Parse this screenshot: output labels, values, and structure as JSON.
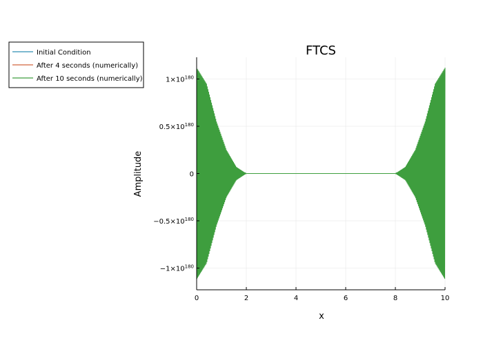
{
  "chart_data": {
    "type": "line",
    "title": "FTCS",
    "xlabel": "x",
    "ylabel": "Amplitude",
    "xlim": [
      0,
      10
    ],
    "ylim": [
      -1.23e+180,
      1.23e+180
    ],
    "x_ticks": [
      0,
      2,
      4,
      6,
      8,
      10
    ],
    "x_tick_labels": [
      "0",
      "2",
      "4",
      "6",
      "8",
      "10"
    ],
    "y_ticks": [
      {
        "value": 1e+180,
        "mantissa": "1×10",
        "exp": "180"
      },
      {
        "value": 5e+179,
        "mantissa": "0.5×10",
        "exp": "180"
      },
      {
        "value": 0,
        "mantissa": "0",
        "exp": ""
      },
      {
        "value": -5e+179,
        "mantissa": "−0.5×10",
        "exp": "180"
      },
      {
        "value": -1e+180,
        "mantissa": "−1×10",
        "exp": "180"
      }
    ],
    "grid": true,
    "legend_position": "outside-top-left",
    "series": [
      {
        "name": "Initial Condition",
        "color": "#2f8fb5",
        "pattern": "flat",
        "peak": 0
      },
      {
        "name": "After 4 seconds (numerically)",
        "color": "#d2643c",
        "pattern": "flat",
        "peak": 0
      },
      {
        "name": "After 10 seconds (numerically)",
        "color": "#3e9e3e",
        "pattern": "oscillating-edges",
        "peak": 1.12e+180,
        "envelope": [
          {
            "x": 0.0,
            "a": 1.12e+180
          },
          {
            "x": 0.4,
            "a": 9.5e+179
          },
          {
            "x": 0.8,
            "a": 5.5e+179
          },
          {
            "x": 1.2,
            "a": 2.5e+179
          },
          {
            "x": 1.6,
            "a": 7e+178
          },
          {
            "x": 2.0,
            "a": 0.0
          },
          {
            "x": 8.0,
            "a": 0.0
          },
          {
            "x": 8.4,
            "a": 7e+178
          },
          {
            "x": 8.8,
            "a": 2.5e+179
          },
          {
            "x": 9.2,
            "a": 5.5e+179
          },
          {
            "x": 9.6,
            "a": 9.5e+179
          },
          {
            "x": 10.0,
            "a": 1.12e+180
          }
        ]
      }
    ]
  }
}
